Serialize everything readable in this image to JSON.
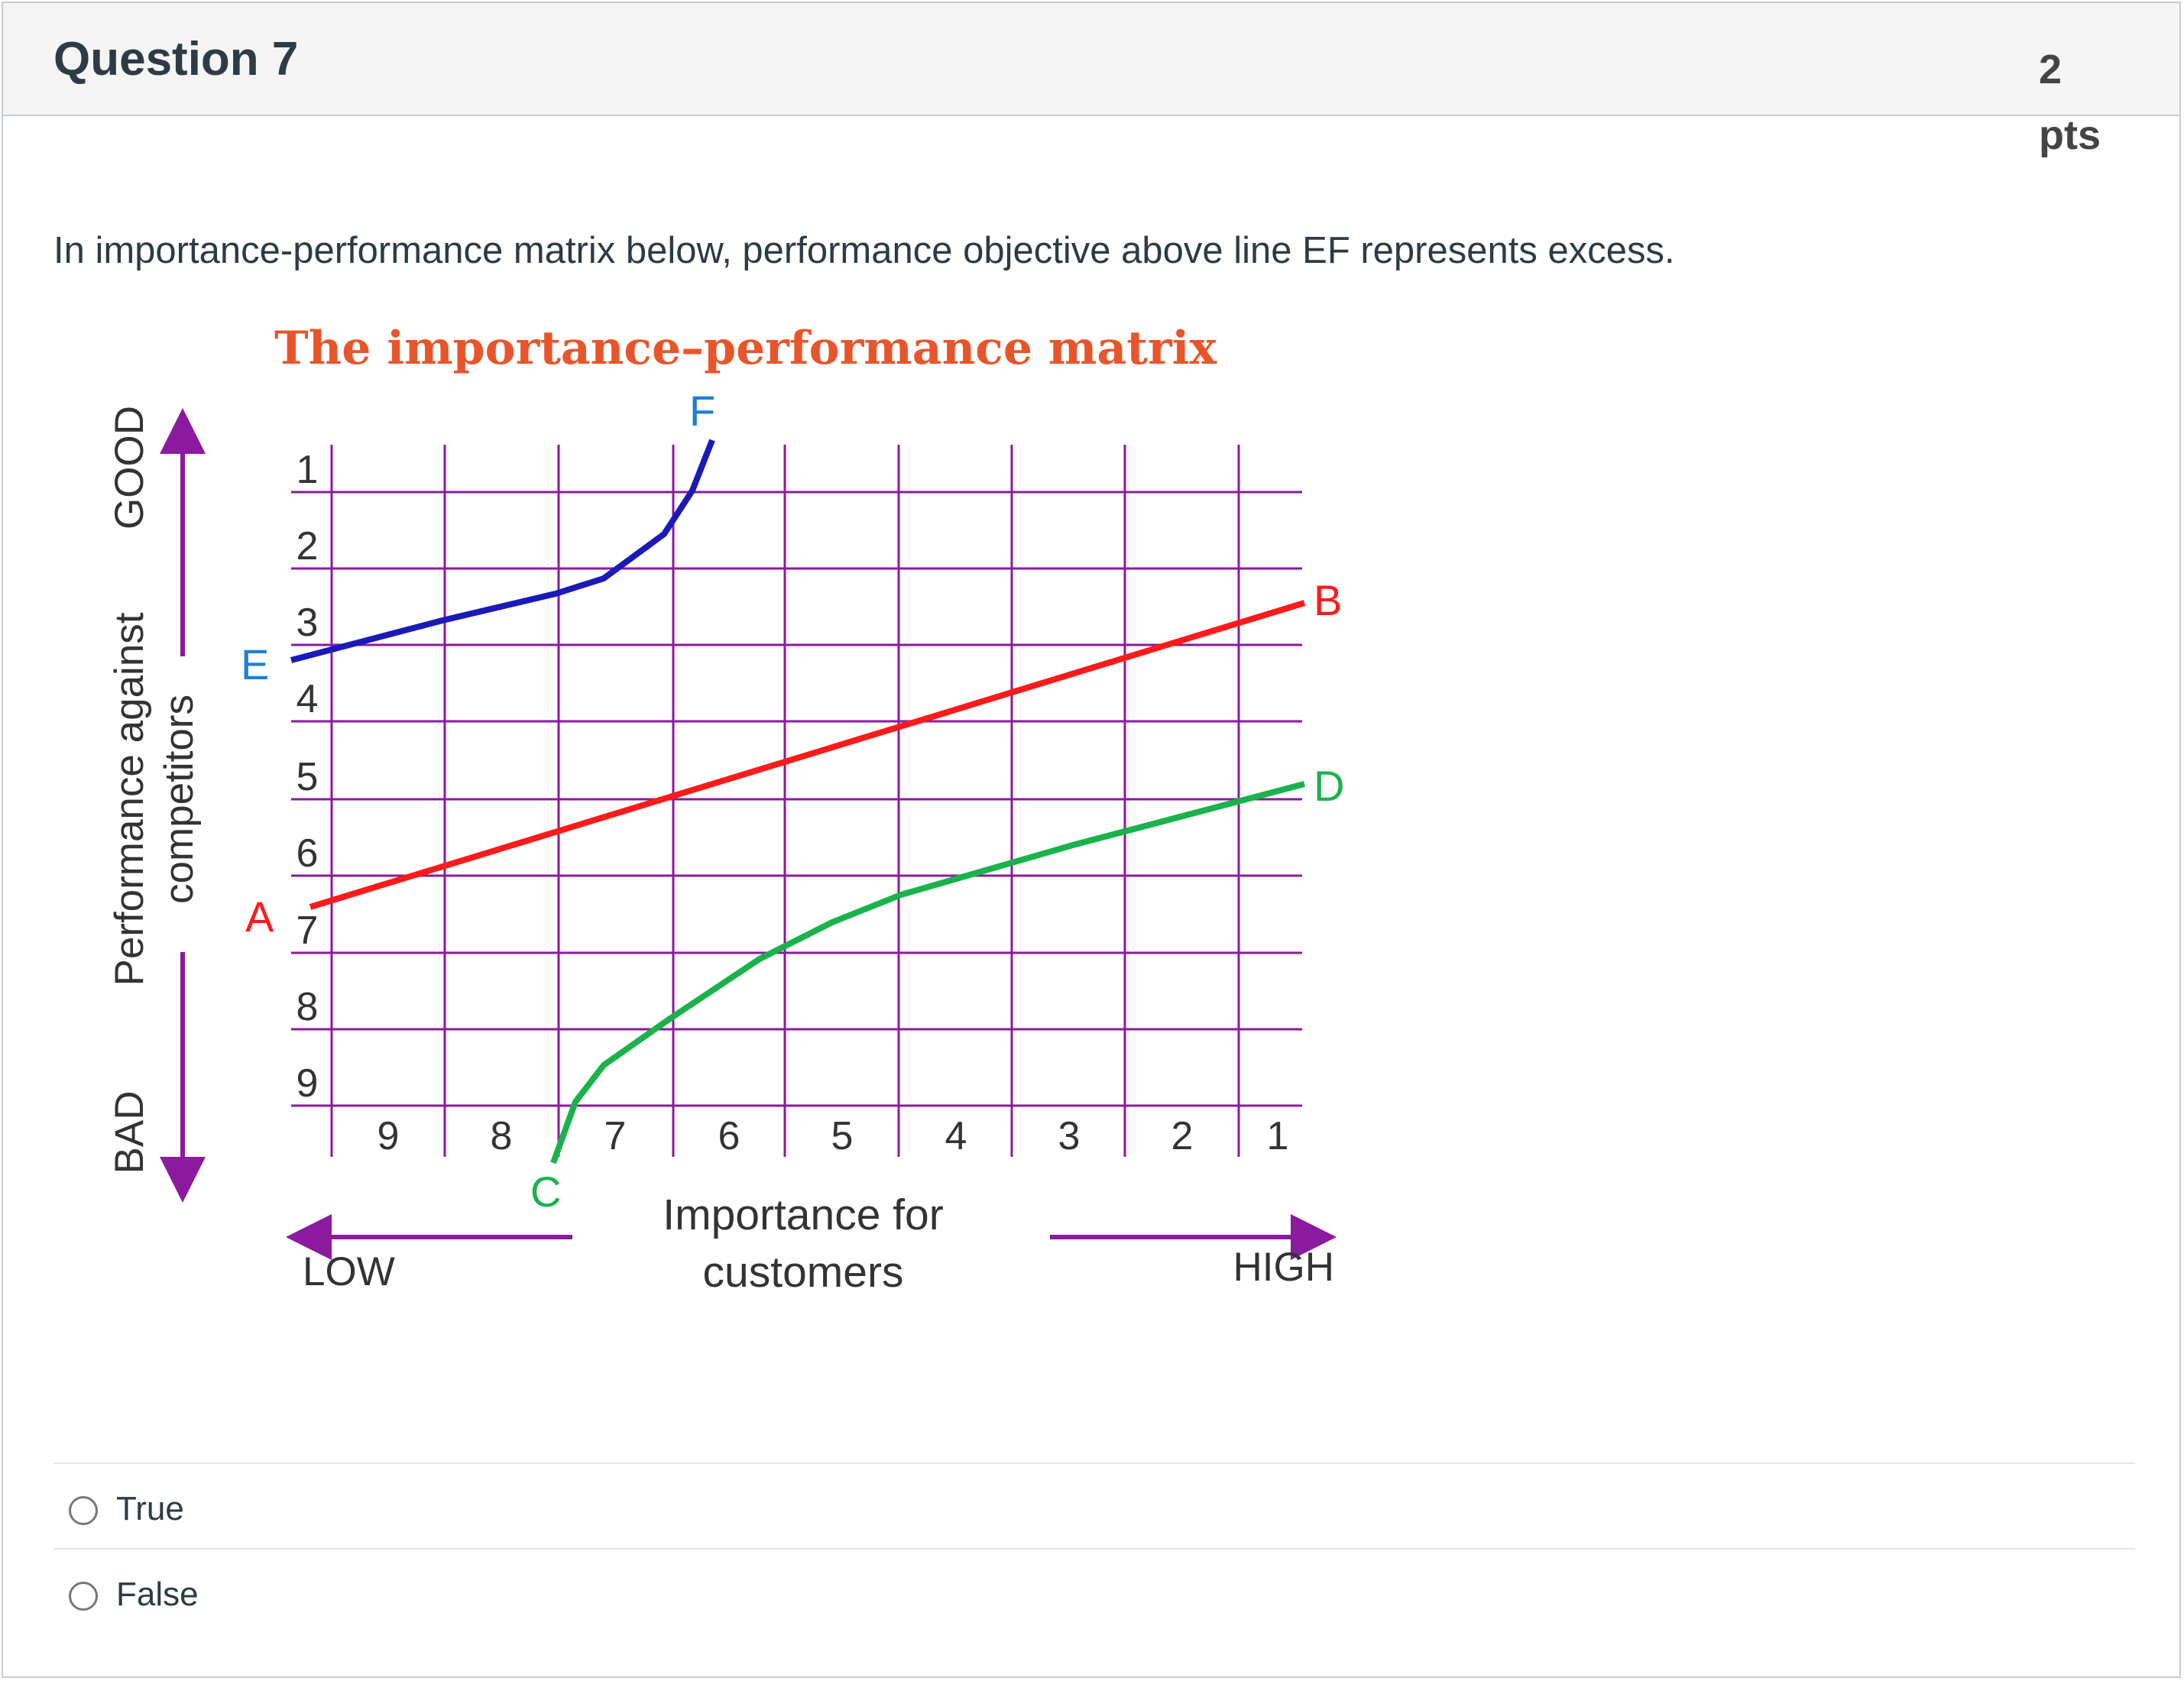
{
  "question": {
    "title": "Question 7",
    "points_value": "2",
    "points_unit": "pts",
    "text": "In importance-performance matrix below, performance objective above line EF represents excess."
  },
  "figure": {
    "title": "The importance–performance matrix",
    "y_axis": {
      "label_line1": "Performance against",
      "label_line2": "competitors",
      "top_end": "GOOD",
      "bottom_end": "BAD",
      "ticks": [
        "1",
        "2",
        "3",
        "4",
        "5",
        "6",
        "7",
        "8",
        "9"
      ]
    },
    "x_axis": {
      "label_line1": "Importance for",
      "label_line2": "customers",
      "left_end": "LOW",
      "right_end": "HIGH",
      "ticks": [
        "9",
        "8",
        "7",
        "6",
        "5",
        "4",
        "3",
        "2",
        "1"
      ]
    },
    "lines": [
      {
        "id": "EF",
        "color": "#1a1ab8",
        "start_label": "E",
        "end_label": "F",
        "start_label_color": "#1f7fd1",
        "end_label_color": "#1f7fd1"
      },
      {
        "id": "AB",
        "color": "#ff1a1a",
        "start_label": "A",
        "end_label": "B",
        "start_label_color": "#ff1a1a",
        "end_label_color": "#ff1a1a"
      },
      {
        "id": "CD",
        "color": "#19b24b",
        "start_label": "C",
        "end_label": "D",
        "start_label_color": "#19b24b",
        "end_label_color": "#19b24b"
      }
    ],
    "colors": {
      "title": "#e8552b",
      "grid": "#8b1a9e",
      "arrows": "#8b1a9e",
      "axis_text": "#333333"
    }
  },
  "answers": [
    {
      "label": "True"
    },
    {
      "label": "False"
    }
  ]
}
